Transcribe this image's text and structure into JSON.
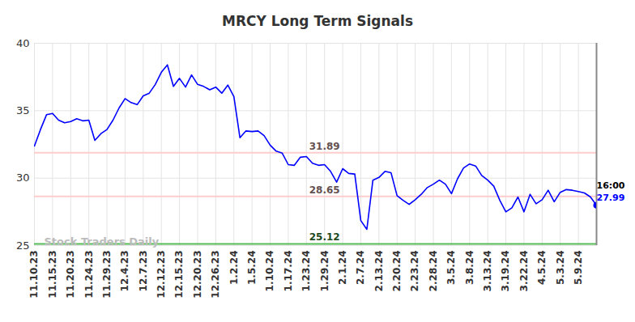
{
  "chart_data": {
    "type": "line",
    "title": "MRCY Long Term Signals",
    "categories": [
      "11.10.23",
      null,
      null,
      "11.15.23",
      null,
      null,
      "11.20.23",
      null,
      null,
      "11.24.23",
      null,
      null,
      "11.29.23",
      null,
      null,
      "12.4.23",
      null,
      null,
      "12.7.23",
      null,
      null,
      "12.12.23",
      null,
      null,
      "12.15.23",
      null,
      null,
      "12.20.23",
      null,
      null,
      "12.26.23",
      null,
      null,
      "1.2.24",
      null,
      null,
      "1.5.24",
      null,
      null,
      "1.10.24",
      null,
      null,
      "1.17.24",
      null,
      null,
      "1.23.24",
      null,
      null,
      "1.29.24",
      null,
      null,
      "2.1.24",
      null,
      null,
      "2.7.24",
      null,
      null,
      "2.13.24",
      null,
      null,
      "2.20.24",
      null,
      null,
      "2.23.24",
      null,
      null,
      "2.28.24",
      null,
      null,
      "3.5.24",
      null,
      null,
      "3.8.24",
      null,
      null,
      "3.13.24",
      null,
      null,
      "3.19.24",
      null,
      null,
      "3.22.24",
      null,
      null,
      "4.5.24",
      null,
      null,
      "5.3.24",
      null,
      null,
      "5.9.24",
      null,
      null,
      null
    ],
    "values": [
      32.38,
      33.6,
      34.7,
      34.8,
      34.3,
      34.1,
      34.2,
      34.4,
      34.25,
      34.3,
      32.8,
      33.3,
      33.6,
      34.3,
      35.2,
      35.9,
      35.6,
      35.45,
      36.1,
      36.3,
      36.95,
      37.85,
      38.4,
      36.8,
      37.4,
      36.75,
      37.65,
      36.95,
      36.8,
      36.55,
      36.75,
      36.3,
      36.9,
      36.05,
      33.0,
      33.5,
      33.45,
      33.5,
      33.15,
      32.45,
      32.0,
      31.85,
      31.0,
      30.95,
      31.55,
      31.6,
      31.1,
      30.95,
      31.0,
      30.5,
      29.7,
      30.7,
      30.35,
      30.3,
      26.85,
      26.2,
      29.85,
      30.05,
      30.5,
      30.4,
      28.7,
      28.35,
      28.05,
      28.4,
      28.8,
      29.3,
      29.55,
      29.85,
      29.55,
      28.85,
      29.95,
      30.75,
      31.05,
      30.9,
      30.2,
      29.85,
      29.4,
      28.35,
      27.5,
      27.8,
      28.6,
      27.5,
      28.8,
      28.1,
      28.4,
      29.1,
      28.25,
      28.95,
      29.15,
      29.1,
      29.0,
      28.9,
      28.6,
      27.99
    ],
    "color": "#0000ff",
    "ylim": [
      25,
      40
    ],
    "yticks": [
      25,
      30,
      35,
      40
    ],
    "grid": true,
    "levels": [
      {
        "value": 31.89,
        "color": "#ffcccc"
      },
      {
        "value": 28.65,
        "color": "#ffcccc"
      },
      {
        "value": 25.12,
        "color": "#55bb55"
      }
    ],
    "last_point": {
      "time_label": "16:00",
      "value": 27.99
    },
    "watermark": "Stock Traders Daily"
  }
}
